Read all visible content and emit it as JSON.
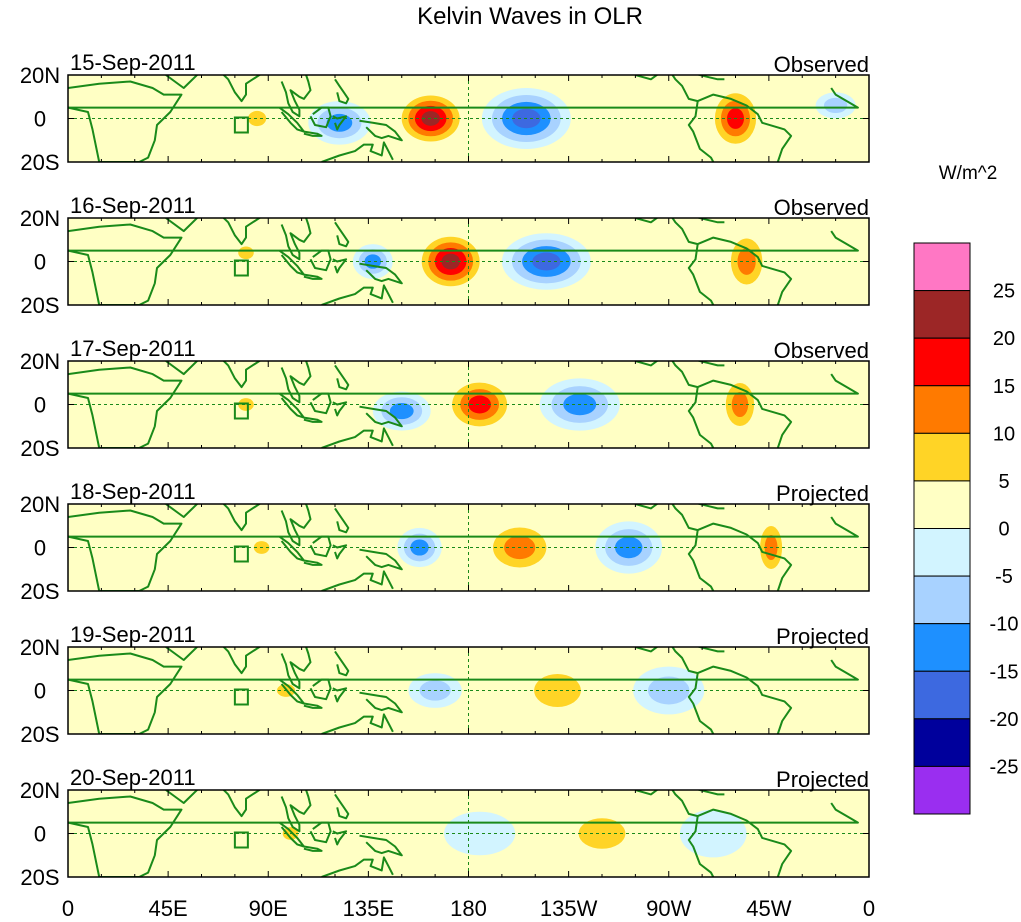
{
  "chart_data": {
    "type": "heatmap",
    "title": "Kelvin Waves in OLR",
    "units": "W/m^2",
    "x_ticks": [
      "0",
      "45E",
      "90E",
      "135E",
      "180",
      "135W",
      "90W",
      "45W",
      "0"
    ],
    "lon_range": [
      0,
      360
    ],
    "y_ticks": [
      "20N",
      "0",
      "20S"
    ],
    "lat_range": [
      -20,
      20
    ],
    "colorbar": {
      "labels": [
        "25",
        "20",
        "15",
        "10",
        "5",
        "0",
        "-5",
        "-10",
        "-15",
        "-20",
        "-25"
      ],
      "levels": [
        25,
        20,
        15,
        10,
        5,
        0,
        -5,
        -10,
        -15,
        -20,
        -25
      ],
      "colors": [
        "#ff77c4",
        "#9c2626",
        "#ff0000",
        "#ff7a00",
        "#ffd426",
        "#ffffc4",
        "#d2f4ff",
        "#a8d2ff",
        "#1e90ff",
        "#3d69e0",
        "#00009c",
        "#9a2ef0"
      ]
    },
    "panels": [
      {
        "date": "15-Sep-2011",
        "label": "Observed",
        "features": [
          {
            "lon": 163,
            "lat": 0,
            "value": 24,
            "wlon": 16,
            "wlat": 13
          },
          {
            "lon": 206,
            "lat": 0,
            "value": -19,
            "wlon": 20,
            "wlat": 14
          },
          {
            "lon": 122,
            "lat": -2,
            "value": -14,
            "wlon": 14,
            "wlat": 10
          },
          {
            "lon": 85,
            "lat": 0,
            "value": 10,
            "wlon": 7,
            "wlat": 6
          },
          {
            "lon": 300,
            "lat": 0,
            "value": 16,
            "wlon": 12,
            "wlat": 15
          },
          {
            "lon": 345,
            "lat": 6,
            "value": -7,
            "wlon": 9,
            "wlat": 6
          }
        ]
      },
      {
        "date": "16-Sep-2011",
        "label": "Observed",
        "features": [
          {
            "lon": 172,
            "lat": 0,
            "value": 25,
            "wlon": 16,
            "wlat": 14
          },
          {
            "lon": 215,
            "lat": 0,
            "value": -16,
            "wlon": 20,
            "wlat": 13
          },
          {
            "lon": 137,
            "lat": 0,
            "value": -13,
            "wlon": 9,
            "wlat": 8
          },
          {
            "lon": 80,
            "lat": 4,
            "value": 9,
            "wlon": 6,
            "wlat": 5
          },
          {
            "lon": 305,
            "lat": 0,
            "value": 13,
            "wlon": 10,
            "wlat": 15
          }
        ]
      },
      {
        "date": "17-Sep-2011",
        "label": "Observed",
        "features": [
          {
            "lon": 185,
            "lat": 0,
            "value": 20,
            "wlon": 16,
            "wlat": 13
          },
          {
            "lon": 230,
            "lat": 0,
            "value": -15,
            "wlon": 18,
            "wlat": 12
          },
          {
            "lon": 150,
            "lat": -3,
            "value": -12,
            "wlon": 13,
            "wlat": 9
          },
          {
            "lon": 302,
            "lat": 0,
            "value": 12,
            "wlon": 9,
            "wlat": 14
          },
          {
            "lon": 80,
            "lat": 0,
            "value": 9,
            "wlon": 6,
            "wlat": 5
          }
        ]
      },
      {
        "date": "18-Sep-2011",
        "label": "Projected",
        "features": [
          {
            "lon": 203,
            "lat": 0,
            "value": 15,
            "wlon": 17,
            "wlat": 13
          },
          {
            "lon": 158,
            "lat": 0,
            "value": -12,
            "wlon": 10,
            "wlat": 9
          },
          {
            "lon": 252,
            "lat": 0,
            "value": -13,
            "wlon": 15,
            "wlat": 12
          },
          {
            "lon": 316,
            "lat": 0,
            "value": 11,
            "wlon": 7,
            "wlat": 14
          },
          {
            "lon": 87,
            "lat": 0,
            "value": 10,
            "wlon": 6,
            "wlat": 5
          }
        ]
      },
      {
        "date": "19-Sep-2011",
        "label": "Projected",
        "features": [
          {
            "lon": 220,
            "lat": 0,
            "value": 8,
            "wlon": 18,
            "wlat": 13
          },
          {
            "lon": 165,
            "lat": 0,
            "value": -9,
            "wlon": 12,
            "wlat": 8
          },
          {
            "lon": 270,
            "lat": 0,
            "value": -8,
            "wlon": 16,
            "wlat": 11
          },
          {
            "lon": 98,
            "lat": 0,
            "value": 9,
            "wlon": 7,
            "wlat": 5
          },
          {
            "lon": 330,
            "lat": 0,
            "value": 5,
            "wlon": 8,
            "wlat": 12
          }
        ]
      },
      {
        "date": "20-Sep-2011",
        "label": "Projected",
        "features": [
          {
            "lon": 240,
            "lat": 0,
            "value": 6,
            "wlon": 18,
            "wlat": 12
          },
          {
            "lon": 185,
            "lat": 0,
            "value": -5,
            "wlon": 16,
            "wlat": 10
          },
          {
            "lon": 290,
            "lat": 0,
            "value": -5,
            "wlon": 15,
            "wlat": 11
          },
          {
            "lon": 100,
            "lat": 0,
            "value": 6,
            "wlon": 6,
            "wlat": 5
          }
        ]
      }
    ]
  }
}
